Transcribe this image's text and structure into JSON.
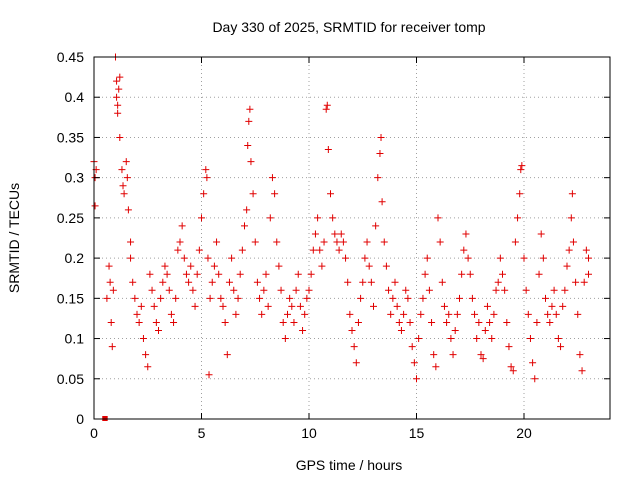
{
  "chart_data": {
    "type": "scatter",
    "title": "Day 330 of 2025, SRMTID for receiver tomp",
    "xlabel": "GPS time / hours",
    "ylabel": "SRMTID / TECUs",
    "xlim": [
      0,
      24
    ],
    "ylim": [
      0,
      0.45
    ],
    "xticks": [
      0,
      5,
      10,
      15,
      20
    ],
    "yticks": [
      0,
      0.05,
      0.1,
      0.15,
      0.2,
      0.25,
      0.3,
      0.35,
      0.4,
      0.45
    ],
    "xtick_labels": [
      "0",
      "5",
      "10",
      "15",
      "20"
    ],
    "ytick_labels": [
      "0",
      "0.05",
      "0.1",
      "0.15",
      "0.2",
      "0.25",
      "0.3",
      "0.35",
      "0.4",
      "0.45"
    ],
    "grid": true,
    "marker": "plus",
    "marker_color": "#e00000",
    "series": [
      {
        "name": "SRMTID",
        "points": [
          [
            0.0,
            0.32
          ],
          [
            0.05,
            0.3
          ],
          [
            0.05,
            0.265
          ],
          [
            0.1,
            0.31
          ],
          [
            0.5,
            0.0
          ],
          [
            0.52,
            0.0
          ],
          [
            0.6,
            0.15
          ],
          [
            0.7,
            0.19
          ],
          [
            0.75,
            0.17
          ],
          [
            0.8,
            0.12
          ],
          [
            0.85,
            0.09
          ],
          [
            0.9,
            0.16
          ],
          [
            1.0,
            0.45
          ],
          [
            1.05,
            0.42
          ],
          [
            1.05,
            0.4
          ],
          [
            1.1,
            0.39
          ],
          [
            1.1,
            0.38
          ],
          [
            1.15,
            0.41
          ],
          [
            1.2,
            0.425
          ],
          [
            1.2,
            0.35
          ],
          [
            1.3,
            0.31
          ],
          [
            1.35,
            0.29
          ],
          [
            1.4,
            0.28
          ],
          [
            1.5,
            0.32
          ],
          [
            1.55,
            0.3
          ],
          [
            1.6,
            0.26
          ],
          [
            1.7,
            0.22
          ],
          [
            1.7,
            0.2
          ],
          [
            1.8,
            0.17
          ],
          [
            1.9,
            0.15
          ],
          [
            2.0,
            0.13
          ],
          [
            2.1,
            0.12
          ],
          [
            2.2,
            0.14
          ],
          [
            2.3,
            0.1
          ],
          [
            2.4,
            0.08
          ],
          [
            2.5,
            0.065
          ],
          [
            2.6,
            0.18
          ],
          [
            2.7,
            0.16
          ],
          [
            2.8,
            0.14
          ],
          [
            2.9,
            0.12
          ],
          [
            3.0,
            0.11
          ],
          [
            3.1,
            0.15
          ],
          [
            3.2,
            0.17
          ],
          [
            3.3,
            0.19
          ],
          [
            3.4,
            0.18
          ],
          [
            3.5,
            0.16
          ],
          [
            3.6,
            0.13
          ],
          [
            3.7,
            0.12
          ],
          [
            3.8,
            0.15
          ],
          [
            3.9,
            0.21
          ],
          [
            4.0,
            0.22
          ],
          [
            4.1,
            0.24
          ],
          [
            4.2,
            0.2
          ],
          [
            4.3,
            0.18
          ],
          [
            4.4,
            0.17
          ],
          [
            4.5,
            0.19
          ],
          [
            4.6,
            0.16
          ],
          [
            4.7,
            0.14
          ],
          [
            4.8,
            0.18
          ],
          [
            4.9,
            0.21
          ],
          [
            5.0,
            0.25
          ],
          [
            5.1,
            0.28
          ],
          [
            5.2,
            0.31
          ],
          [
            5.25,
            0.3
          ],
          [
            5.3,
            0.2
          ],
          [
            5.35,
            0.055
          ],
          [
            5.4,
            0.15
          ],
          [
            5.5,
            0.17
          ],
          [
            5.6,
            0.19
          ],
          [
            5.7,
            0.22
          ],
          [
            5.8,
            0.18
          ],
          [
            5.9,
            0.15
          ],
          [
            6.0,
            0.14
          ],
          [
            6.1,
            0.12
          ],
          [
            6.2,
            0.08
          ],
          [
            6.3,
            0.17
          ],
          [
            6.4,
            0.2
          ],
          [
            6.5,
            0.16
          ],
          [
            6.6,
            0.13
          ],
          [
            6.7,
            0.15
          ],
          [
            6.8,
            0.18
          ],
          [
            6.9,
            0.21
          ],
          [
            7.0,
            0.24
          ],
          [
            7.1,
            0.26
          ],
          [
            7.15,
            0.34
          ],
          [
            7.2,
            0.37
          ],
          [
            7.25,
            0.385
          ],
          [
            7.3,
            0.32
          ],
          [
            7.4,
            0.28
          ],
          [
            7.5,
            0.22
          ],
          [
            7.6,
            0.17
          ],
          [
            7.7,
            0.15
          ],
          [
            7.8,
            0.13
          ],
          [
            7.9,
            0.16
          ],
          [
            8.0,
            0.18
          ],
          [
            8.1,
            0.14
          ],
          [
            8.2,
            0.25
          ],
          [
            8.3,
            0.3
          ],
          [
            8.4,
            0.28
          ],
          [
            8.5,
            0.22
          ],
          [
            8.6,
            0.19
          ],
          [
            8.7,
            0.16
          ],
          [
            8.8,
            0.12
          ],
          [
            8.9,
            0.1
          ],
          [
            9.0,
            0.13
          ],
          [
            9.1,
            0.15
          ],
          [
            9.2,
            0.14
          ],
          [
            9.3,
            0.12
          ],
          [
            9.4,
            0.16
          ],
          [
            9.5,
            0.18
          ],
          [
            9.6,
            0.14
          ],
          [
            9.7,
            0.11
          ],
          [
            9.8,
            0.13
          ],
          [
            9.9,
            0.15
          ],
          [
            10.0,
            0.16
          ],
          [
            10.1,
            0.18
          ],
          [
            10.2,
            0.21
          ],
          [
            10.3,
            0.23
          ],
          [
            10.4,
            0.25
          ],
          [
            10.5,
            0.21
          ],
          [
            10.6,
            0.19
          ],
          [
            10.7,
            0.22
          ],
          [
            10.8,
            0.385
          ],
          [
            10.85,
            0.39
          ],
          [
            10.9,
            0.335
          ],
          [
            11.0,
            0.28
          ],
          [
            11.1,
            0.25
          ],
          [
            11.2,
            0.23
          ],
          [
            11.3,
            0.22
          ],
          [
            11.4,
            0.21
          ],
          [
            11.5,
            0.23
          ],
          [
            11.6,
            0.22
          ],
          [
            11.7,
            0.2
          ],
          [
            11.8,
            0.17
          ],
          [
            11.9,
            0.13
          ],
          [
            12.0,
            0.11
          ],
          [
            12.1,
            0.09
          ],
          [
            12.2,
            0.07
          ],
          [
            12.3,
            0.12
          ],
          [
            12.4,
            0.15
          ],
          [
            12.5,
            0.17
          ],
          [
            12.6,
            0.2
          ],
          [
            12.7,
            0.22
          ],
          [
            12.8,
            0.19
          ],
          [
            12.9,
            0.17
          ],
          [
            13.0,
            0.14
          ],
          [
            13.1,
            0.24
          ],
          [
            13.2,
            0.3
          ],
          [
            13.3,
            0.33
          ],
          [
            13.35,
            0.35
          ],
          [
            13.4,
            0.27
          ],
          [
            13.5,
            0.22
          ],
          [
            13.6,
            0.19
          ],
          [
            13.7,
            0.16
          ],
          [
            13.8,
            0.13
          ],
          [
            13.9,
            0.15
          ],
          [
            14.0,
            0.17
          ],
          [
            14.1,
            0.14
          ],
          [
            14.2,
            0.12
          ],
          [
            14.3,
            0.11
          ],
          [
            14.4,
            0.13
          ],
          [
            14.5,
            0.16
          ],
          [
            14.6,
            0.15
          ],
          [
            14.7,
            0.12
          ],
          [
            14.8,
            0.09
          ],
          [
            14.9,
            0.07
          ],
          [
            15.0,
            0.05
          ],
          [
            15.1,
            0.1
          ],
          [
            15.2,
            0.13
          ],
          [
            15.3,
            0.15
          ],
          [
            15.4,
            0.18
          ],
          [
            15.5,
            0.2
          ],
          [
            15.6,
            0.16
          ],
          [
            15.7,
            0.12
          ],
          [
            15.8,
            0.08
          ],
          [
            15.9,
            0.065
          ],
          [
            16.0,
            0.25
          ],
          [
            16.1,
            0.22
          ],
          [
            16.2,
            0.17
          ],
          [
            16.3,
            0.14
          ],
          [
            16.4,
            0.12
          ],
          [
            16.5,
            0.13
          ],
          [
            16.6,
            0.1
          ],
          [
            16.7,
            0.08
          ],
          [
            16.8,
            0.11
          ],
          [
            16.9,
            0.13
          ],
          [
            17.0,
            0.15
          ],
          [
            17.1,
            0.18
          ],
          [
            17.2,
            0.21
          ],
          [
            17.3,
            0.23
          ],
          [
            17.4,
            0.2
          ],
          [
            17.5,
            0.18
          ],
          [
            17.6,
            0.15
          ],
          [
            17.7,
            0.13
          ],
          [
            17.8,
            0.1
          ],
          [
            17.9,
            0.12
          ],
          [
            18.0,
            0.08
          ],
          [
            18.1,
            0.075
          ],
          [
            18.2,
            0.11
          ],
          [
            18.3,
            0.14
          ],
          [
            18.4,
            0.12
          ],
          [
            18.5,
            0.1
          ],
          [
            18.6,
            0.13
          ],
          [
            18.7,
            0.16
          ],
          [
            18.8,
            0.17
          ],
          [
            18.9,
            0.2
          ],
          [
            19.0,
            0.18
          ],
          [
            19.1,
            0.16
          ],
          [
            19.2,
            0.12
          ],
          [
            19.3,
            0.09
          ],
          [
            19.4,
            0.065
          ],
          [
            19.5,
            0.06
          ],
          [
            19.6,
            0.22
          ],
          [
            19.7,
            0.25
          ],
          [
            19.8,
            0.28
          ],
          [
            19.85,
            0.31
          ],
          [
            19.9,
            0.315
          ],
          [
            20.0,
            0.2
          ],
          [
            20.1,
            0.16
          ],
          [
            20.2,
            0.13
          ],
          [
            20.3,
            0.1
          ],
          [
            20.4,
            0.07
          ],
          [
            20.5,
            0.05
          ],
          [
            20.6,
            0.12
          ],
          [
            20.7,
            0.18
          ],
          [
            20.8,
            0.23
          ],
          [
            20.9,
            0.2
          ],
          [
            21.0,
            0.15
          ],
          [
            21.1,
            0.13
          ],
          [
            21.2,
            0.12
          ],
          [
            21.3,
            0.14
          ],
          [
            21.4,
            0.16
          ],
          [
            21.5,
            0.13
          ],
          [
            21.6,
            0.1
          ],
          [
            21.7,
            0.09
          ],
          [
            21.8,
            0.14
          ],
          [
            21.9,
            0.16
          ],
          [
            22.0,
            0.19
          ],
          [
            22.1,
            0.21
          ],
          [
            22.2,
            0.25
          ],
          [
            22.25,
            0.28
          ],
          [
            22.3,
            0.22
          ],
          [
            22.4,
            0.17
          ],
          [
            22.5,
            0.13
          ],
          [
            22.6,
            0.08
          ],
          [
            22.7,
            0.06
          ],
          [
            22.8,
            0.17
          ],
          [
            22.9,
            0.21
          ],
          [
            23.0,
            0.2
          ],
          [
            23.0,
            0.18
          ]
        ]
      }
    ]
  }
}
